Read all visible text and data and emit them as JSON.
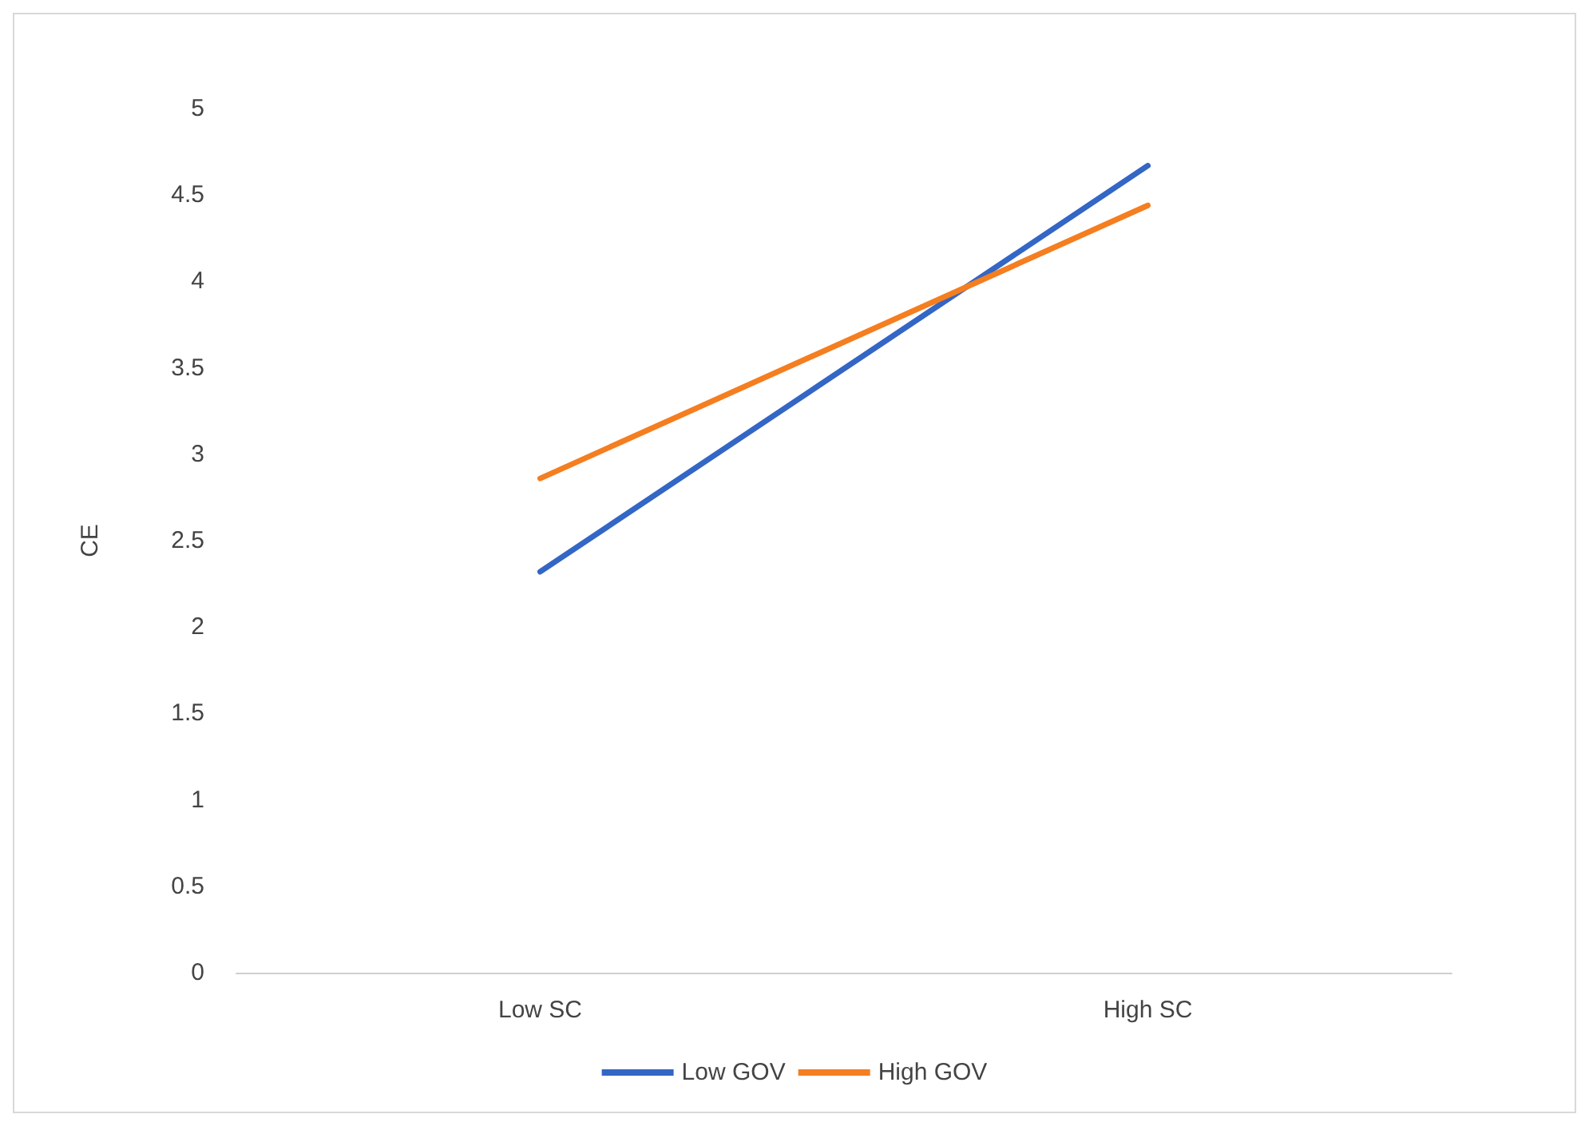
{
  "chart_data": {
    "type": "line",
    "ylabel": "CE",
    "categories": [
      "Low SC",
      "High SC"
    ],
    "series": [
      {
        "name": "Low GOV",
        "color": "#3366c5",
        "values": [
          2.32,
          4.67
        ]
      },
      {
        "name": "High GOV",
        "color": "#f47e20",
        "values": [
          2.86,
          4.44
        ]
      }
    ],
    "ylim": [
      0,
      5
    ],
    "yticks": [
      0,
      0.5,
      1,
      1.5,
      2,
      2.5,
      3,
      3.5,
      4,
      4.5,
      5
    ],
    "grid": false,
    "legend": "bottom",
    "marker": "none",
    "line_style": "solid"
  }
}
